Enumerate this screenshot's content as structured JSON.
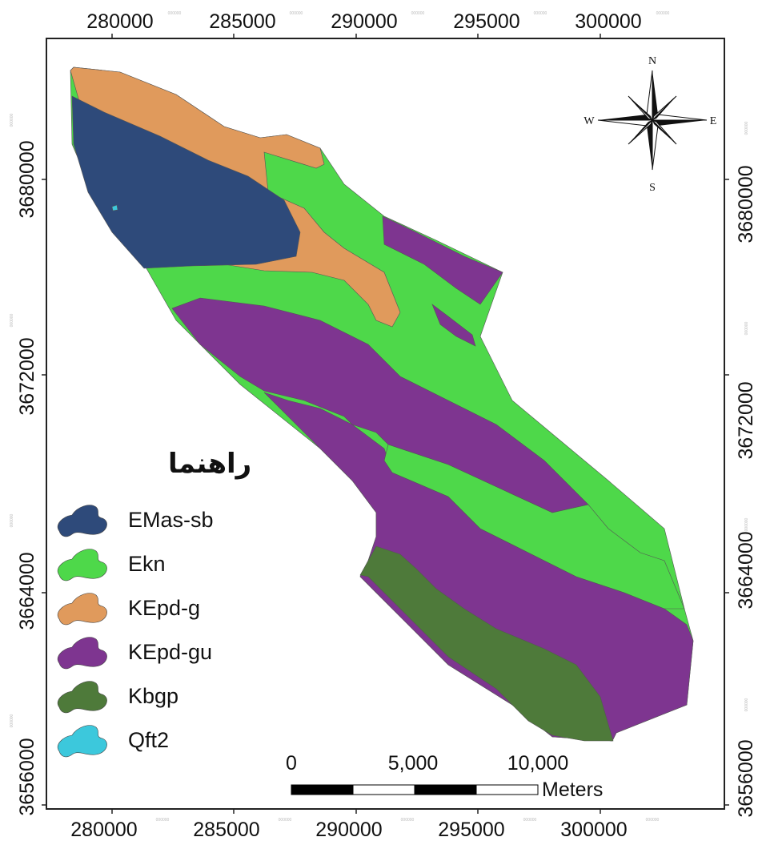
{
  "map": {
    "x_ticks_top": [
      "280000",
      "285000",
      "290000",
      "295000",
      "300000"
    ],
    "x_ticks_bottom": [
      "280000",
      "285000",
      "290000",
      "295000",
      "300000"
    ],
    "y_ticks_left": [
      "3680000",
      "3672000",
      "3664000",
      "3656000"
    ],
    "y_ticks_right": [
      "3680000",
      "3672000",
      "3664000",
      "3656000"
    ],
    "faint_tick_text": "000000"
  },
  "legend": {
    "title": "راهنما",
    "items": [
      {
        "label": "EMas-sb",
        "color": "#2e4a7a"
      },
      {
        "label": "Ekn",
        "color": "#4ed84a"
      },
      {
        "label": "KEpd-g",
        "color": "#e09a5c"
      },
      {
        "label": "KEpd-gu",
        "color": "#7e3590"
      },
      {
        "label": "Kbgp",
        "color": "#4e7a3a"
      },
      {
        "label": "Qft2",
        "color": "#3cc8dc"
      }
    ]
  },
  "scalebar": {
    "labels": [
      "0",
      "5,000",
      "10,000"
    ],
    "unit": "Meters"
  },
  "compass": {
    "n": "N",
    "s": "S",
    "e": "E",
    "w": "W"
  }
}
